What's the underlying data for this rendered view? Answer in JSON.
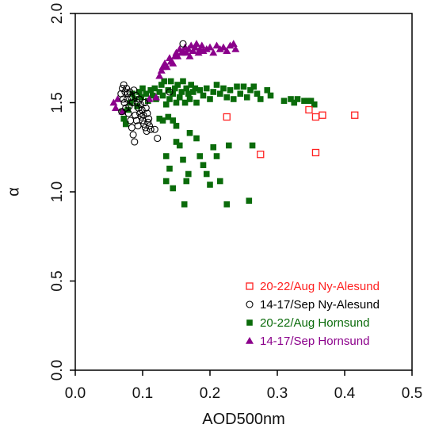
{
  "chart_data": {
    "type": "scatter",
    "xlabel": "AOD500nm",
    "ylabel": "α",
    "xlim": [
      0.0,
      0.5
    ],
    "ylim": [
      0.0,
      2.0
    ],
    "xticks": [
      "0.0",
      "0.1",
      "0.2",
      "0.3",
      "0.4",
      "0.5"
    ],
    "yticks": [
      "0.0",
      "0.5",
      "1.0",
      "1.5",
      "2.0"
    ],
    "grid": false,
    "legend_position": "bottom-right",
    "series": [
      {
        "name": "20-22/Aug Ny-Alesund",
        "marker": "open-square",
        "color": "#ff2020",
        "points": [
          [
            0.225,
            1.42
          ],
          [
            0.275,
            1.21
          ],
          [
            0.347,
            1.46
          ],
          [
            0.357,
            1.42
          ],
          [
            0.367,
            1.43
          ],
          [
            0.357,
            1.22
          ],
          [
            0.415,
            1.43
          ]
        ]
      },
      {
        "name": "14-17/Sep Ny-Alesund",
        "marker": "open-circle",
        "color": "#000000",
        "points": [
          [
            0.068,
            1.55
          ],
          [
            0.07,
            1.58
          ],
          [
            0.072,
            1.6
          ],
          [
            0.074,
            1.56
          ],
          [
            0.071,
            1.52
          ],
          [
            0.073,
            1.5
          ],
          [
            0.075,
            1.47
          ],
          [
            0.069,
            1.45
          ],
          [
            0.076,
            1.58
          ],
          [
            0.078,
            1.55
          ],
          [
            0.077,
            1.52
          ],
          [
            0.08,
            1.48
          ],
          [
            0.079,
            1.44
          ],
          [
            0.082,
            1.4
          ],
          [
            0.084,
            1.36
          ],
          [
            0.086,
            1.32
          ],
          [
            0.088,
            1.28
          ],
          [
            0.081,
            1.56
          ],
          [
            0.083,
            1.53
          ],
          [
            0.085,
            1.5
          ],
          [
            0.087,
            1.57
          ],
          [
            0.09,
            1.54
          ],
          [
            0.092,
            1.5
          ],
          [
            0.094,
            1.47
          ],
          [
            0.096,
            1.44
          ],
          [
            0.098,
            1.42
          ],
          [
            0.1,
            1.4
          ],
          [
            0.102,
            1.38
          ],
          [
            0.104,
            1.36
          ],
          [
            0.106,
            1.34
          ],
          [
            0.108,
            1.39
          ],
          [
            0.11,
            1.37
          ],
          [
            0.112,
            1.35
          ],
          [
            0.095,
            1.52
          ],
          [
            0.097,
            1.49
          ],
          [
            0.099,
            1.46
          ],
          [
            0.101,
            1.43
          ],
          [
            0.089,
            1.43
          ],
          [
            0.091,
            1.4
          ],
          [
            0.093,
            1.37
          ],
          [
            0.103,
            1.5
          ],
          [
            0.105,
            1.47
          ],
          [
            0.107,
            1.44
          ],
          [
            0.109,
            1.41
          ],
          [
            0.118,
            1.35
          ],
          [
            0.122,
            1.3
          ],
          [
            0.16,
            1.83
          ],
          [
            0.14,
            1.56
          ]
        ]
      },
      {
        "name": "20-22/Aug Hornsund",
        "marker": "filled-square",
        "color": "#0a6b0a",
        "points": [
          [
            0.07,
            1.45
          ],
          [
            0.072,
            1.41
          ],
          [
            0.075,
            1.38
          ],
          [
            0.078,
            1.46
          ],
          [
            0.082,
            1.5
          ],
          [
            0.085,
            1.55
          ],
          [
            0.088,
            1.52
          ],
          [
            0.092,
            1.48
          ],
          [
            0.095,
            1.56
          ],
          [
            0.098,
            1.53
          ],
          [
            0.1,
            1.58
          ],
          [
            0.105,
            1.55
          ],
          [
            0.108,
            1.51
          ],
          [
            0.112,
            1.57
          ],
          [
            0.115,
            1.54
          ],
          [
            0.118,
            1.58
          ],
          [
            0.12,
            1.52
          ],
          [
            0.125,
            1.56
          ],
          [
            0.128,
            1.6
          ],
          [
            0.13,
            1.54
          ],
          [
            0.132,
            1.62
          ],
          [
            0.135,
            1.49
          ],
          [
            0.138,
            1.57
          ],
          [
            0.14,
            1.52
          ],
          [
            0.142,
            1.62
          ],
          [
            0.145,
            1.55
          ],
          [
            0.148,
            1.58
          ],
          [
            0.15,
            1.5
          ],
          [
            0.152,
            1.6
          ],
          [
            0.155,
            1.53
          ],
          [
            0.158,
            1.56
          ],
          [
            0.16,
            1.62
          ],
          [
            0.163,
            1.5
          ],
          [
            0.165,
            1.58
          ],
          [
            0.168,
            1.55
          ],
          [
            0.17,
            1.52
          ],
          [
            0.172,
            1.6
          ],
          [
            0.175,
            1.56
          ],
          [
            0.178,
            1.58
          ],
          [
            0.18,
            1.5
          ],
          [
            0.185,
            1.57
          ],
          [
            0.19,
            1.54
          ],
          [
            0.195,
            1.58
          ],
          [
            0.2,
            1.52
          ],
          [
            0.205,
            1.56
          ],
          [
            0.21,
            1.6
          ],
          [
            0.215,
            1.55
          ],
          [
            0.22,
            1.58
          ],
          [
            0.225,
            1.53
          ],
          [
            0.23,
            1.57
          ],
          [
            0.235,
            1.52
          ],
          [
            0.24,
            1.59
          ],
          [
            0.245,
            1.55
          ],
          [
            0.25,
            1.59
          ],
          [
            0.255,
            1.53
          ],
          [
            0.26,
            1.57
          ],
          [
            0.265,
            1.59
          ],
          [
            0.27,
            1.55
          ],
          [
            0.275,
            1.52
          ],
          [
            0.285,
            1.57
          ],
          [
            0.29,
            1.54
          ],
          [
            0.31,
            1.51
          ],
          [
            0.32,
            1.52
          ],
          [
            0.325,
            1.5
          ],
          [
            0.33,
            1.52
          ],
          [
            0.34,
            1.51
          ],
          [
            0.35,
            1.51
          ],
          [
            0.355,
            1.49
          ],
          [
            0.345,
            1.51
          ],
          [
            0.13,
            1.4
          ],
          [
            0.138,
            1.42
          ],
          [
            0.145,
            1.4
          ],
          [
            0.125,
            1.41
          ],
          [
            0.15,
            1.37
          ],
          [
            0.135,
            1.2
          ],
          [
            0.14,
            1.13
          ],
          [
            0.135,
            1.06
          ],
          [
            0.145,
            1.02
          ],
          [
            0.15,
            1.28
          ],
          [
            0.155,
            1.26
          ],
          [
            0.16,
            1.18
          ],
          [
            0.162,
            0.93
          ],
          [
            0.165,
            1.06
          ],
          [
            0.168,
            1.1
          ],
          [
            0.17,
            1.33
          ],
          [
            0.18,
            1.3
          ],
          [
            0.185,
            1.2
          ],
          [
            0.19,
            1.15
          ],
          [
            0.195,
            1.1
          ],
          [
            0.2,
            1.04
          ],
          [
            0.205,
            1.25
          ],
          [
            0.21,
            1.2
          ],
          [
            0.215,
            1.06
          ],
          [
            0.225,
            0.93
          ],
          [
            0.228,
            1.26
          ],
          [
            0.258,
            0.95
          ],
          [
            0.263,
            1.26
          ]
        ]
      },
      {
        "name": "14-17/Sep Hornsund",
        "marker": "filled-triangle",
        "color": "#8b008b",
        "points": [
          [
            0.057,
            1.5
          ],
          [
            0.06,
            1.47
          ],
          [
            0.063,
            1.52
          ],
          [
            0.07,
            1.45
          ],
          [
            0.11,
            1.52
          ],
          [
            0.12,
            1.53
          ],
          [
            0.125,
            1.65
          ],
          [
            0.128,
            1.68
          ],
          [
            0.13,
            1.7
          ],
          [
            0.133,
            1.72
          ],
          [
            0.136,
            1.7
          ],
          [
            0.14,
            1.75
          ],
          [
            0.142,
            1.73
          ],
          [
            0.145,
            1.72
          ],
          [
            0.148,
            1.76
          ],
          [
            0.15,
            1.78
          ],
          [
            0.152,
            1.76
          ],
          [
            0.155,
            1.8
          ],
          [
            0.158,
            1.78
          ],
          [
            0.16,
            1.79
          ],
          [
            0.163,
            1.81
          ],
          [
            0.165,
            1.78
          ],
          [
            0.168,
            1.8
          ],
          [
            0.17,
            1.76
          ],
          [
            0.172,
            1.82
          ],
          [
            0.175,
            1.79
          ],
          [
            0.178,
            1.81
          ],
          [
            0.18,
            1.83
          ],
          [
            0.183,
            1.78
          ],
          [
            0.185,
            1.8
          ],
          [
            0.188,
            1.82
          ],
          [
            0.19,
            1.79
          ],
          [
            0.195,
            1.8
          ],
          [
            0.2,
            1.81
          ],
          [
            0.205,
            1.78
          ],
          [
            0.21,
            1.82
          ],
          [
            0.215,
            1.8
          ],
          [
            0.22,
            1.81
          ],
          [
            0.225,
            1.79
          ],
          [
            0.23,
            1.82
          ],
          [
            0.235,
            1.83
          ],
          [
            0.238,
            1.8
          ]
        ]
      }
    ]
  }
}
